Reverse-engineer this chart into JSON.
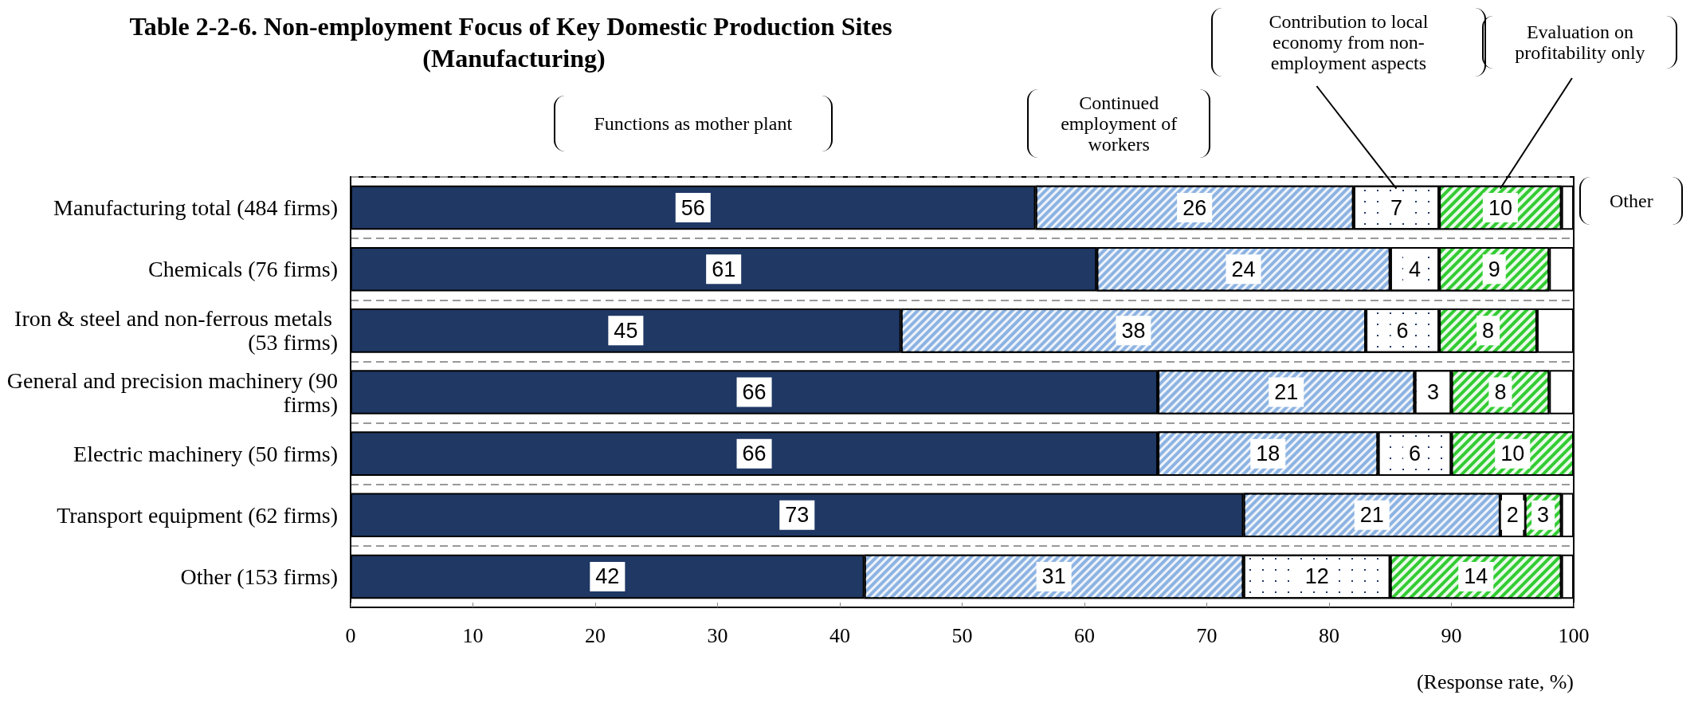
{
  "chart_data": {
    "type": "bar",
    "orientation": "horizontal",
    "stacked": true,
    "title": "Table 2-2-6. Non-employment Focus of Key Domestic Production Sites (Manufacturing)",
    "xlabel": "(Response rate, %)",
    "categories": [
      "Manufacturing total (484 firms)",
      "Chemicals (76 firms)",
      "Iron & steel and non-ferrous metals (53 firms)",
      "General and precision machinery (90 firms)",
      "Electric machinery (50 firms)",
      "Transport equipment (62 firms)",
      "Other (153 firms)"
    ],
    "series": [
      {
        "name": "Functions as mother plant",
        "color": "#1f3864",
        "values": [
          56,
          61,
          45,
          66,
          66,
          73,
          42
        ],
        "value_labels": [
          "56",
          "61",
          "45",
          "66",
          "66",
          "73",
          "42"
        ]
      },
      {
        "name": "Continued employment of workers",
        "color": "#8db3e2",
        "values": [
          26,
          24,
          38,
          21,
          18,
          21,
          31
        ],
        "value_labels": [
          "26",
          "24",
          "38",
          "21",
          "18",
          "21",
          "31"
        ]
      },
      {
        "name": "Contribution to local economy from non-employment aspects",
        "color": "#ffffff",
        "values": [
          7,
          4,
          6,
          3,
          6,
          2,
          12
        ],
        "value_labels": [
          "7",
          "4",
          "6",
          "3",
          "6",
          "2",
          "12"
        ]
      },
      {
        "name": "Evaluation on profitability only",
        "color": "#33cc33",
        "values": [
          10,
          9,
          8,
          8,
          10,
          3,
          14
        ],
        "value_labels": [
          "10",
          "9",
          "8",
          "8",
          "10",
          "3",
          "14"
        ]
      },
      {
        "name": "Other",
        "color": "#ffffff",
        "values": [
          1,
          2,
          3,
          2,
          null,
          1,
          1
        ]
      }
    ],
    "xlim": [
      0,
      100
    ],
    "xticks": [
      0,
      10,
      20,
      30,
      40,
      50,
      60,
      70,
      80,
      90,
      100
    ],
    "grid": "y"
  }
}
